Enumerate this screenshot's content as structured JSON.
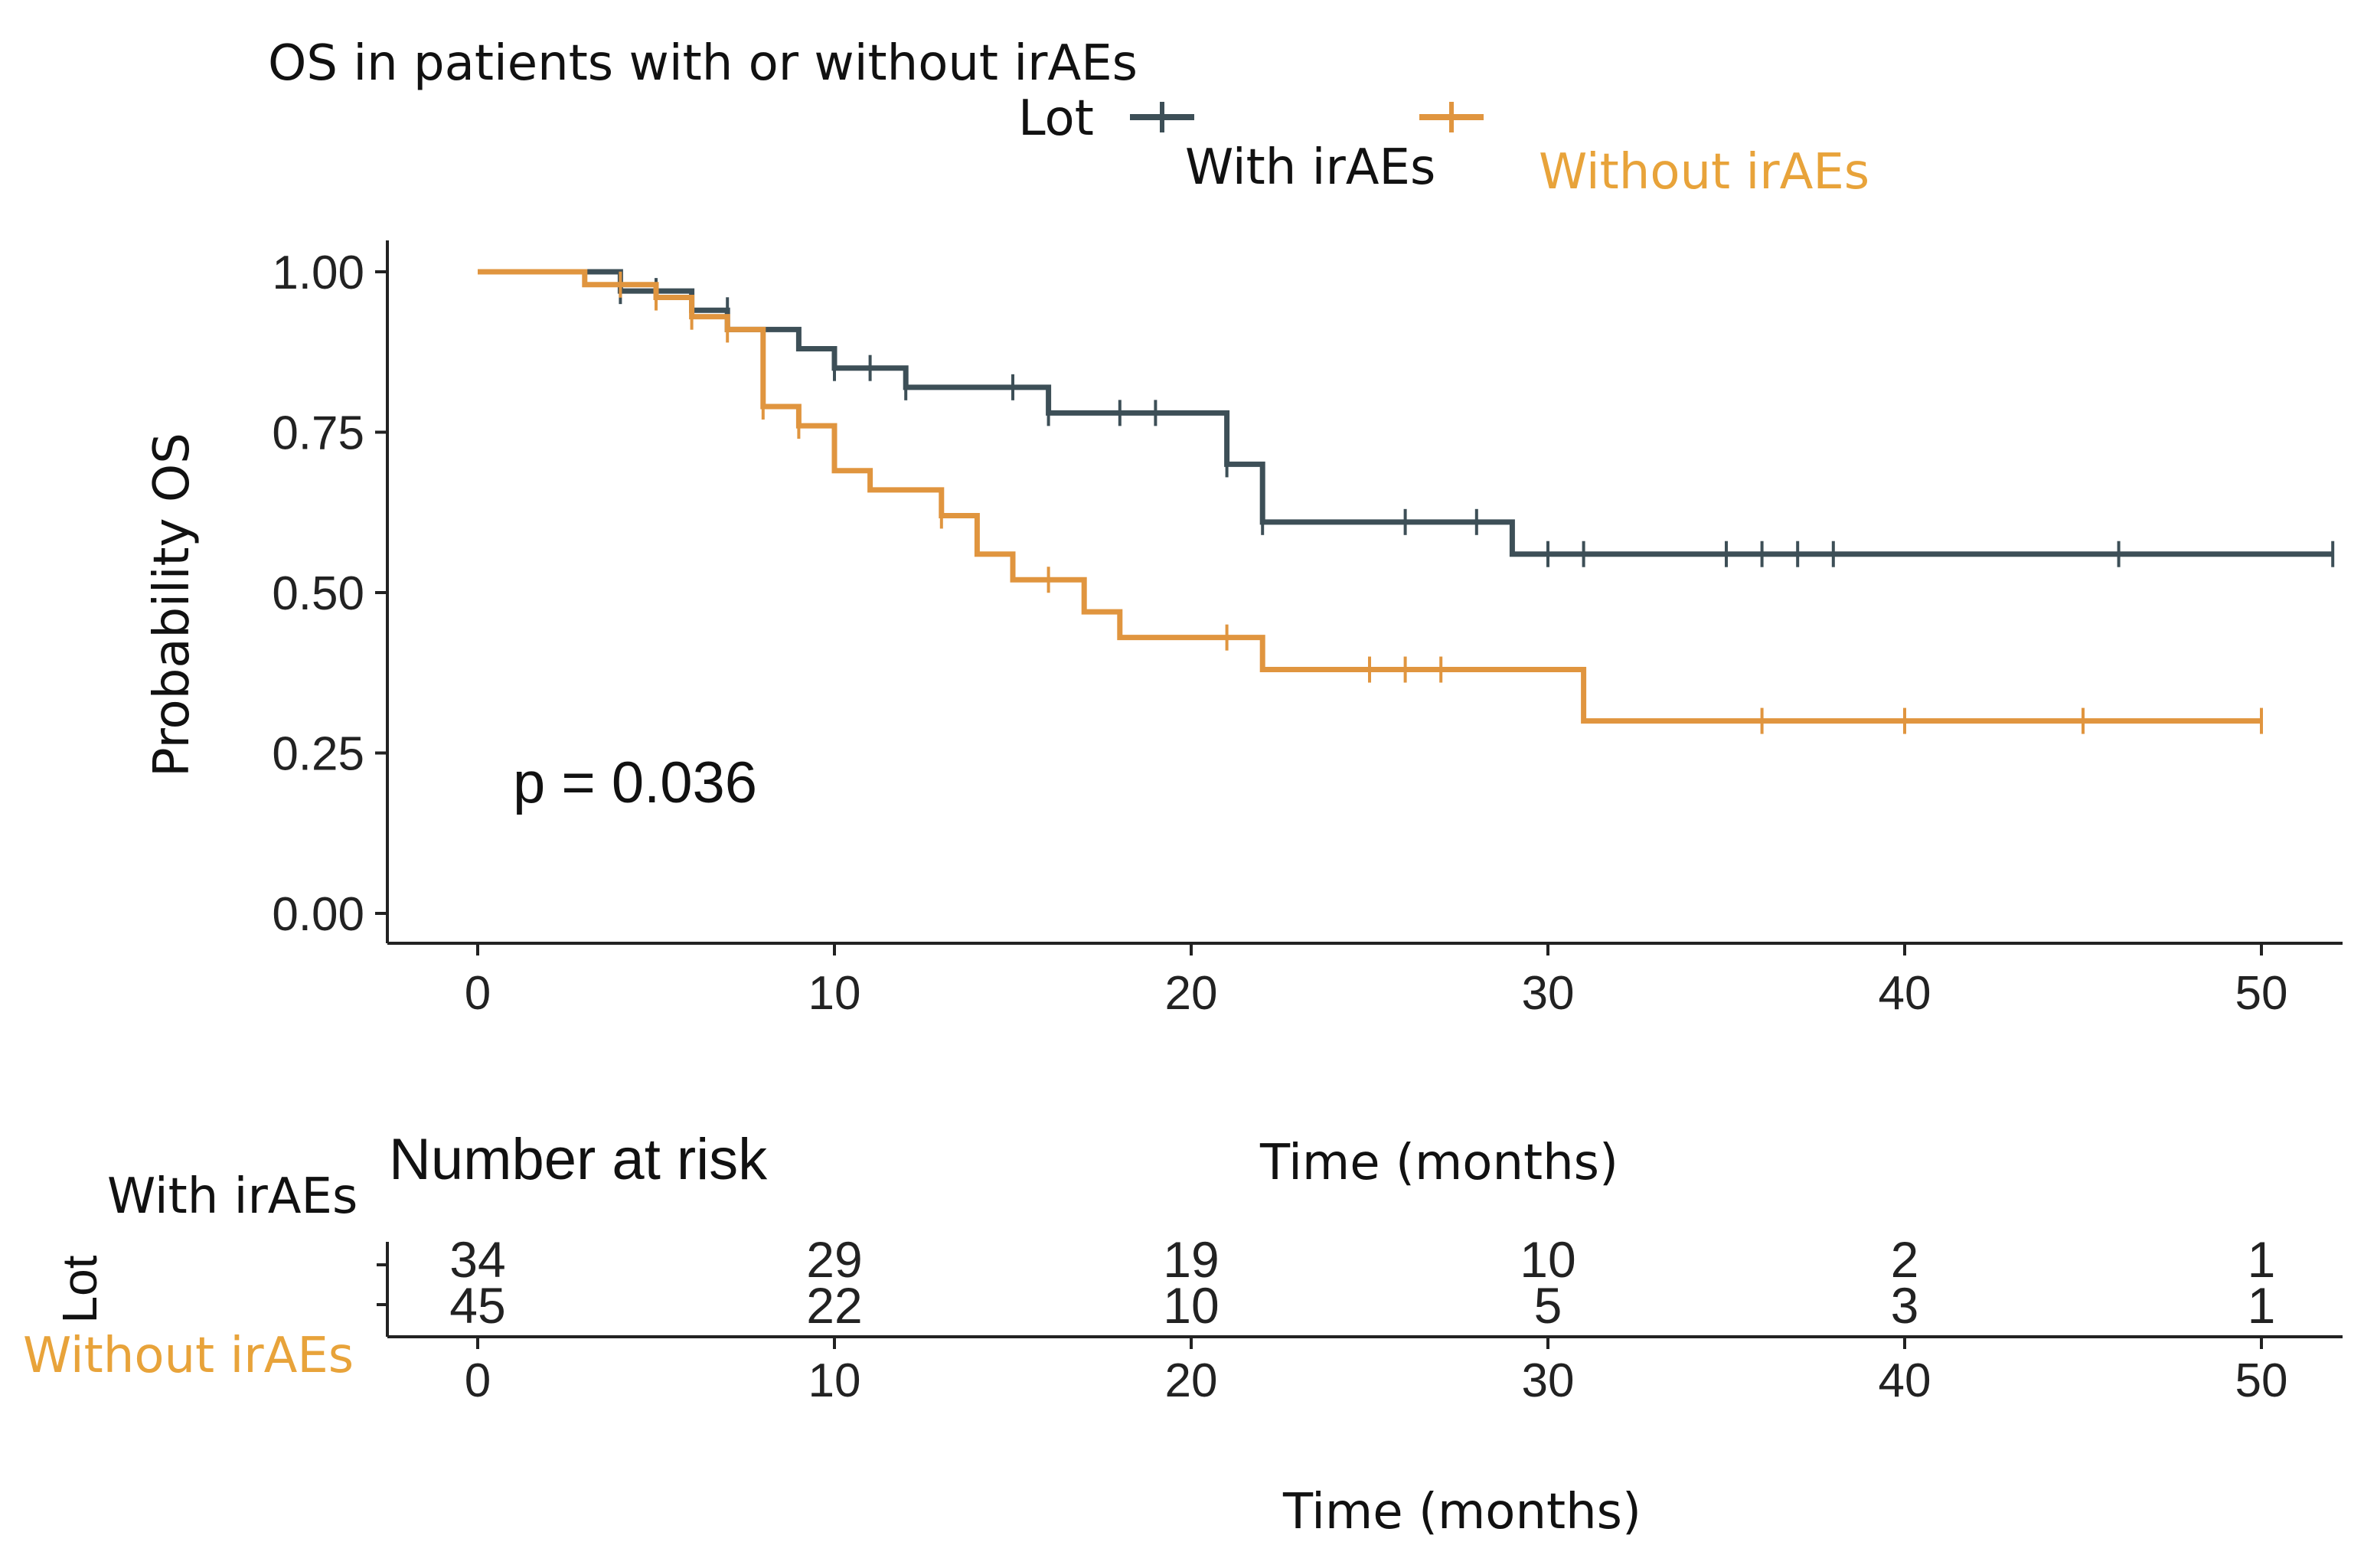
{
  "chart_data": {
    "type": "line",
    "subtype": "kaplan-meier",
    "title": "OS in patients with or without irAEs",
    "legend": {
      "title": "Lot",
      "position": "top",
      "entries": [
        {
          "name": "With irAEs",
          "color": "#3d4f57"
        },
        {
          "name": "Without irAEs",
          "color": "#e0953f"
        }
      ]
    },
    "xlabel": "Time (months)",
    "ylabel": "Probability OS",
    "xlim": [
      0,
      52
    ],
    "ylim": [
      0,
      1.0
    ],
    "x_ticks": [
      "0",
      "10",
      "20",
      "30",
      "40",
      "50"
    ],
    "x_tick_values": [
      0,
      10,
      20,
      30,
      40,
      50
    ],
    "y_ticks": [
      "0.00",
      "0.25",
      "0.50",
      "0.75",
      "1.00"
    ],
    "y_tick_values": [
      0,
      0.25,
      0.5,
      0.75,
      1.0
    ],
    "grid": false,
    "annotation": "p = 0.036",
    "series": [
      {
        "name": "With irAEs",
        "color": "#3d4f57",
        "steps": [
          [
            0,
            1.0
          ],
          [
            4,
            0.97
          ],
          [
            6,
            0.94
          ],
          [
            7,
            0.91
          ],
          [
            9,
            0.88
          ],
          [
            10,
            0.85
          ],
          [
            12,
            0.82
          ],
          [
            16,
            0.78
          ],
          [
            21,
            0.7
          ],
          [
            22,
            0.61
          ],
          [
            29,
            0.56
          ],
          [
            52,
            0.56
          ]
        ],
        "censors": [
          [
            4,
            0.97
          ],
          [
            5,
            0.97
          ],
          [
            7,
            0.94
          ],
          [
            10,
            0.85
          ],
          [
            11,
            0.85
          ],
          [
            12,
            0.82
          ],
          [
            15,
            0.82
          ],
          [
            16,
            0.78
          ],
          [
            18,
            0.78
          ],
          [
            19,
            0.78
          ],
          [
            21,
            0.7
          ],
          [
            22,
            0.61
          ],
          [
            26,
            0.61
          ],
          [
            28,
            0.61
          ],
          [
            30,
            0.56
          ],
          [
            31,
            0.56
          ],
          [
            35,
            0.56
          ],
          [
            36,
            0.56
          ],
          [
            37,
            0.56
          ],
          [
            38,
            0.56
          ],
          [
            46,
            0.56
          ],
          [
            52,
            0.56
          ]
        ]
      },
      {
        "name": "Without irAEs",
        "color": "#e0953f",
        "steps": [
          [
            0,
            1.0
          ],
          [
            3,
            0.98
          ],
          [
            5,
            0.96
          ],
          [
            6,
            0.93
          ],
          [
            7,
            0.91
          ],
          [
            8,
            0.79
          ],
          [
            9,
            0.76
          ],
          [
            10,
            0.69
          ],
          [
            11,
            0.66
          ],
          [
            13,
            0.62
          ],
          [
            14,
            0.56
          ],
          [
            15,
            0.52
          ],
          [
            17,
            0.47
          ],
          [
            18,
            0.43
          ],
          [
            22,
            0.38
          ],
          [
            31,
            0.3
          ],
          [
            50,
            0.3
          ]
        ],
        "censors": [
          [
            4,
            0.98
          ],
          [
            5,
            0.96
          ],
          [
            6,
            0.93
          ],
          [
            7,
            0.91
          ],
          [
            8,
            0.79
          ],
          [
            9,
            0.76
          ],
          [
            13,
            0.62
          ],
          [
            16,
            0.52
          ],
          [
            21,
            0.43
          ],
          [
            25,
            0.38
          ],
          [
            26,
            0.38
          ],
          [
            27,
            0.38
          ],
          [
            36,
            0.3
          ],
          [
            40,
            0.3
          ],
          [
            45,
            0.3
          ],
          [
            50,
            0.3
          ]
        ]
      }
    ],
    "risk_table": {
      "title": "Number at risk",
      "ylabel": "Lot",
      "xlabel": "Time (months)",
      "row_labels": [
        "With irAEs",
        "Without irAEs"
      ],
      "times": [
        0,
        10,
        20,
        30,
        40,
        50
      ],
      "tick_labels": [
        "0",
        "10",
        "20",
        "30",
        "40",
        "50"
      ],
      "rows": [
        {
          "name": "With irAEs",
          "color": "#3d4f57",
          "counts": [
            "34",
            "29",
            "19",
            "10",
            "2",
            "1"
          ]
        },
        {
          "name": "Without irAEs",
          "color": "#e0953f",
          "counts": [
            "45",
            "22",
            "10",
            "5",
            "3",
            "1"
          ]
        }
      ]
    }
  }
}
